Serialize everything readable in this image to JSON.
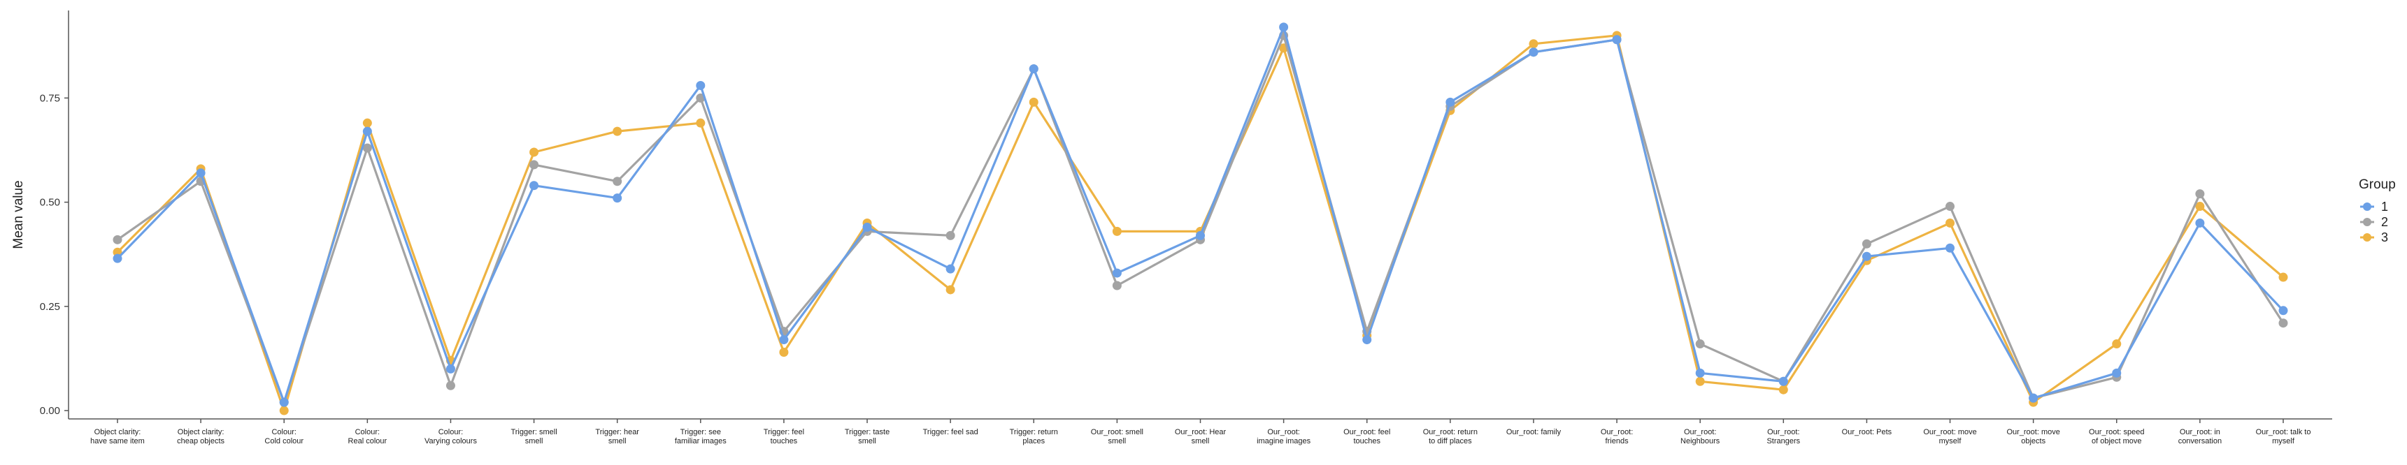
{
  "chart_data": {
    "type": "line",
    "ylabel": "Mean value",
    "xlabel": "",
    "ylim": [
      -0.02,
      0.96
    ],
    "yticks": [
      "0.00",
      "0.25",
      "0.50",
      "0.75"
    ],
    "grid": false,
    "legend_position": "right",
    "legend_title": "Group",
    "categories": [
      [
        "Object clarity:",
        "have same item"
      ],
      [
        "Object clarity:",
        "cheap objects"
      ],
      [
        "Colour:",
        "Cold colour"
      ],
      [
        "Colour:",
        "Real colour"
      ],
      [
        "Colour:",
        "Varying colours"
      ],
      [
        "Trigger: smell",
        "smell"
      ],
      [
        "Trigger: hear",
        "smell"
      ],
      [
        "Trigger: see",
        "familiar images"
      ],
      [
        "Trigger: feel",
        "touches"
      ],
      [
        "Trigger: taste",
        "smell"
      ],
      [
        "Trigger: feel sad"
      ],
      [
        "Trigger: return",
        "places"
      ],
      [
        "Our_root: smell",
        "smell"
      ],
      [
        "Our_root: Hear",
        "smell"
      ],
      [
        "Our_root:",
        "imagine images"
      ],
      [
        "Our_root: feel",
        "touches"
      ],
      [
        "Our_root: return",
        "to diff places"
      ],
      [
        "Our_root: family"
      ],
      [
        "Our_root:",
        "friends"
      ],
      [
        "Our_root:",
        "Neighbours"
      ],
      [
        "Our_root:",
        "Strangers"
      ],
      [
        "Our_root: Pets"
      ],
      [
        "Our_root: move",
        "myself"
      ],
      [
        "Our_root: move",
        "objects"
      ],
      [
        "Our_root: speed",
        "of object move"
      ],
      [
        "Our_root: in",
        "conversation"
      ],
      [
        "Our_root: talk to",
        "myself"
      ]
    ],
    "series": [
      {
        "name": "1",
        "color": "#6a9fe6",
        "values": [
          0.365,
          0.57,
          0.02,
          0.67,
          0.1,
          0.54,
          0.51,
          0.78,
          0.17,
          0.44,
          0.34,
          0.82,
          0.33,
          0.42,
          0.92,
          0.17,
          0.74,
          0.86,
          0.89,
          0.09,
          0.07,
          0.37,
          0.39,
          0.03,
          0.09,
          0.45,
          0.24
        ]
      },
      {
        "name": "2",
        "color": "#a3a3a3",
        "values": [
          0.41,
          0.55,
          0.02,
          0.63,
          0.06,
          0.59,
          0.55,
          0.75,
          0.19,
          0.43,
          0.42,
          0.82,
          0.3,
          0.41,
          0.9,
          0.19,
          0.73,
          0.86,
          0.89,
          0.16,
          0.07,
          0.4,
          0.49,
          0.03,
          0.08,
          0.52,
          0.21
        ]
      },
      {
        "name": "3",
        "color": "#eeb342",
        "values": [
          0.38,
          0.58,
          0.0,
          0.69,
          0.12,
          0.62,
          0.67,
          0.69,
          0.14,
          0.45,
          0.29,
          0.74,
          0.43,
          0.43,
          0.87,
          0.18,
          0.72,
          0.88,
          0.9,
          0.07,
          0.05,
          0.36,
          0.45,
          0.02,
          0.16,
          0.49,
          0.32
        ]
      }
    ]
  }
}
